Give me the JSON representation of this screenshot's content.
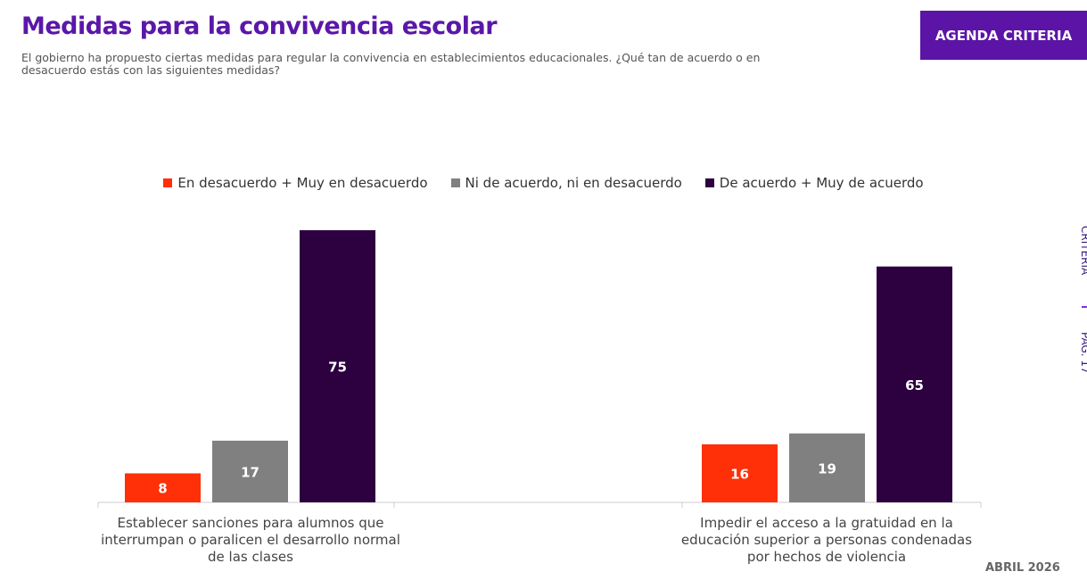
{
  "header": {
    "title": "Medidas para la convivencia escolar",
    "subtitle": "El gobierno ha propuesto ciertas medidas para regular la convivencia en establecimientos educacionales. ¿Qué tan de acuerdo o en desacuerdo estás con las siguientes medidas?",
    "brand": "AGENDA CRITERIA"
  },
  "side": {
    "page": "PÁG. 17",
    "brand": "CRITERIA"
  },
  "footer": {
    "date": "ABRIL 2026"
  },
  "chart_data": {
    "type": "bar",
    "title": "",
    "categories": [
      "Establecer sanciones para alumnos que interrumpan o paralicen el desarrollo normal de las clases",
      "Impedir el acceso a la gratuidad en la educación superior a personas condenadas por hechos de violencia"
    ],
    "series": [
      {
        "name": "En desacuerdo + Muy en desacuerdo",
        "color": "#ff3008",
        "values": [
          8,
          16
        ]
      },
      {
        "name": "Ni de acuerdo, ni en desacuerdo",
        "color": "#808080",
        "values": [
          17,
          19
        ]
      },
      {
        "name": "De acuerdo + Muy de acuerdo",
        "color": "#2d0040",
        "values": [
          75,
          65
        ]
      }
    ],
    "ylim": [
      0,
      75
    ],
    "legend": "top-center",
    "grid": false
  }
}
